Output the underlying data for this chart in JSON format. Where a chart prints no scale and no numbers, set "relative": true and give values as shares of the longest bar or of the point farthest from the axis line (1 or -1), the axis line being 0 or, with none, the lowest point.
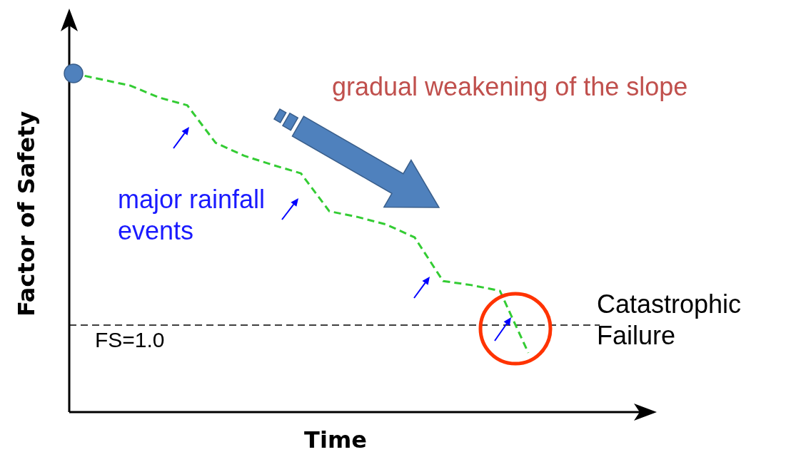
{
  "chart_data": {
    "type": "line",
    "relative": true,
    "xlabel": "Time",
    "ylabel": "Factor of Safety",
    "categories": [
      null,
      null,
      null,
      null,
      null,
      null,
      null,
      null,
      null,
      null,
      null,
      null,
      null,
      null,
      null,
      null,
      null
    ],
    "series": [
      {
        "color": "#33cc33",
        "line_style": "dashed",
        "values": [
          1.0,
          0.982,
          0.964,
          0.929,
          0.906,
          0.795,
          0.757,
          0.73,
          0.705,
          0.593,
          0.576,
          0.554,
          0.516,
          0.387,
          0.375,
          0.358,
          0.175
        ]
      }
    ],
    "ref_lines": [
      {
        "axis": "y",
        "value": 0.257,
        "color": "#000000",
        "line_style": "dashed"
      }
    ],
    "annotations": [
      "gradual weakening of the slope",
      "major rainfall events",
      "Catastrophic Failure",
      "FS=1.0"
    ]
  }
}
